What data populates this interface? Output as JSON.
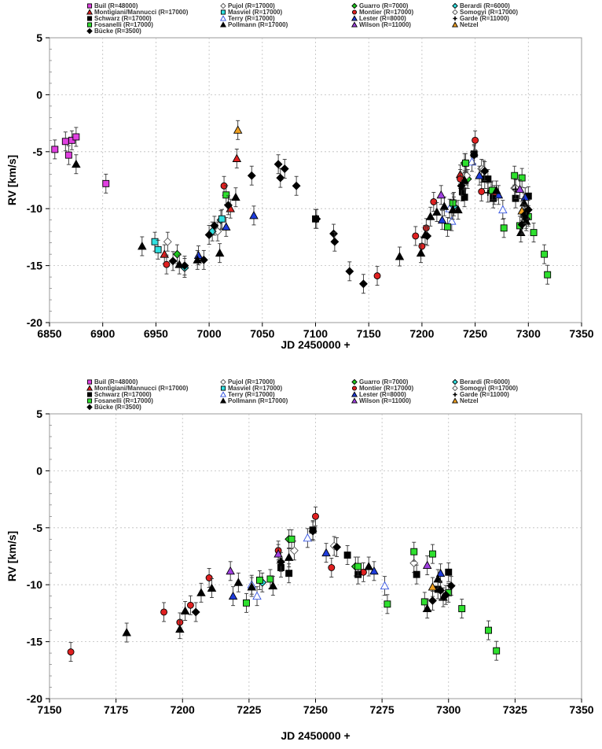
{
  "chart_data": [
    {
      "type": "scatter",
      "xlabel": "JD 2450000 +",
      "ylabel": "RV [km/s]",
      "xlim": [
        6850,
        7350
      ],
      "ylim": [
        -20,
        5
      ],
      "xticks": [
        "6850",
        "6900",
        "6950",
        "7000",
        "7050",
        "7100",
        "7150",
        "7200",
        "7250",
        "7300",
        "7350"
      ],
      "yticks": [
        "5",
        "0",
        "-5",
        "-10",
        "-15",
        "-20"
      ],
      "grid": true,
      "legend_position": "top",
      "legend": [
        "Buil (R=48000)",
        "Pujol (R=17000)",
        "Guarro (R=7000)",
        "Berardi (R=6000)",
        "Montigiani/Mannucci (R=17000)",
        "Masviel (R=17000)",
        "Montier (R=17000)",
        "Somogyi (R=17000)",
        "Schwarz (R=17000)",
        "Terry (R=17000)",
        "Lester (R=8000)",
        "Garde (R=11000)",
        "Fosanelli (R=17000)",
        "Pollmann (R=17000)",
        "Wilson (R=11000)",
        "Netzel",
        "Bücke (R=3500)"
      ],
      "series": [
        {
          "name": "Buil (R=48000)",
          "marker": "square",
          "color": "#e040e0",
          "points": [
            [
              6855,
              -4.8
            ],
            [
              6865,
              -4.1
            ],
            [
              6868,
              -5.3
            ],
            [
              6871,
              -4.0
            ],
            [
              6875,
              -3.7
            ],
            [
              6903,
              -7.8
            ]
          ]
        },
        {
          "name": "Pujol (R=17000)",
          "marker": "diamond-open",
          "color": "#ffffff",
          "points": [
            [
              6961,
              -12.9
            ],
            [
              7008,
              -12.0
            ],
            [
              7241,
              -7.0
            ],
            [
              7256,
              -6.5
            ],
            [
              7287,
              -8.2
            ]
          ]
        },
        {
          "name": "Guarro (R=7000)",
          "marker": "diamond",
          "color": "#1ec81e",
          "points": [
            [
              6970,
              -14.0
            ],
            [
              7240,
              -6.0
            ],
            [
              7243,
              -7.4
            ],
            [
              7265,
              -8.5
            ]
          ]
        },
        {
          "name": "Berardi (R=6000)",
          "marker": "diamond",
          "color": "#30e0e0",
          "points": [
            [
              6977,
              -15.2
            ],
            [
              7003,
              -12.0
            ],
            [
              7011,
              -11.0
            ],
            [
              7230,
              -9.8
            ]
          ]
        },
        {
          "name": "Montigiani/Mannucci (R=17000)",
          "marker": "triangle",
          "color": "#e02020",
          "points": [
            [
              6958,
              -14.0
            ],
            [
              7026,
              -5.6
            ],
            [
              7020,
              -10.0
            ],
            [
              7236,
              -7.0
            ]
          ]
        },
        {
          "name": "Masviel (R=17000)",
          "marker": "square",
          "color": "#30e0e0",
          "points": [
            [
              6949,
              -12.9
            ],
            [
              6952,
              -13.6
            ],
            [
              7012,
              -10.9
            ]
          ]
        },
        {
          "name": "Montier (R=17000)",
          "marker": "circle",
          "color": "#e02020",
          "points": [
            [
              6960,
              -14.9
            ],
            [
              7014,
              -8.0
            ],
            [
              7158,
              -15.9
            ],
            [
              7194,
              -12.4
            ],
            [
              7200,
              -13.3
            ],
            [
              7204,
              -11.7
            ],
            [
              7211,
              -9.4
            ],
            [
              7236,
              -7.4
            ],
            [
              7250,
              -4.0
            ],
            [
              7256,
              -8.5
            ],
            [
              7268,
              -8.8
            ]
          ]
        },
        {
          "name": "Somogyi (R=17000)",
          "marker": "diamond-open",
          "color": "#ffffff",
          "points": [
            [
              7242,
              -7.1
            ],
            [
              7258,
              -6.6
            ],
            [
              7288,
              -8.2
            ]
          ]
        },
        {
          "name": "Schwarz (R=17000)",
          "marker": "square",
          "color": "#000000",
          "points": [
            [
              7100,
              -10.9
            ],
            [
              7238,
              -8.5
            ],
            [
              7240,
              -9.0
            ],
            [
              7249,
              -5.2
            ],
            [
              7259,
              -7.4
            ],
            [
              7262,
              -7.4
            ],
            [
              7267,
              -9.1
            ],
            [
              7288,
              -9.1
            ],
            [
              7296,
              -10.5
            ],
            [
              7300,
              -8.9
            ]
          ]
        },
        {
          "name": "Terry (R=17000)",
          "marker": "triangle-open",
          "color": "#ffffff",
          "points": [
            [
              7226,
              -10.0
            ],
            [
              7228,
              -11.1
            ],
            [
              7247,
              -5.9
            ],
            [
              7276,
              -10.1
            ]
          ]
        },
        {
          "name": "Lester (R=8000)",
          "marker": "triangle",
          "color": "#1e3cdc",
          "points": [
            [
              6990,
              -14.1
            ],
            [
              7016,
              -11.6
            ],
            [
              7042,
              -10.6
            ],
            [
              7219,
              -11.0
            ],
            [
              7254,
              -7.1
            ],
            [
              7272,
              -8.8
            ],
            [
              7297,
              -9.0
            ]
          ]
        },
        {
          "name": "Garde (R=11000)",
          "marker": "plus",
          "color": "#000000",
          "points": [
            [
              7230,
              -9.4
            ],
            [
              7262,
              -8.6
            ],
            [
              7288,
              -8.3
            ]
          ]
        },
        {
          "name": "Fosanelli (R=17000)",
          "marker": "square",
          "color": "#2ee02e",
          "points": [
            [
              7016,
              -8.8
            ],
            [
              7224,
              -11.6
            ],
            [
              7229,
              -9.5
            ],
            [
              7241,
              -6.0
            ],
            [
              7266,
              -8.4
            ],
            [
              7277,
              -11.7
            ],
            [
              7287,
              -7.1
            ],
            [
              7292,
              -11.5
            ],
            [
              7294,
              -7.3
            ],
            [
              7300,
              -10.7
            ],
            [
              7305,
              -12.1
            ],
            [
              7315,
              -14.0
            ],
            [
              7318,
              -15.8
            ]
          ]
        },
        {
          "name": "Pollmann (R=17000)",
          "marker": "triangle",
          "color": "#000000",
          "points": [
            [
              6875,
              -6.1
            ],
            [
              6937,
              -13.3
            ],
            [
              6972,
              -14.9
            ],
            [
              6989,
              -14.5
            ],
            [
              7010,
              -13.9
            ],
            [
              7025,
              -9.0
            ],
            [
              7179,
              -14.2
            ],
            [
              7199,
              -13.9
            ],
            [
              7203,
              -12.3
            ],
            [
              7208,
              -10.7
            ],
            [
              7214,
              -10.3
            ],
            [
              7221,
              -9.8
            ],
            [
              7229,
              -10.1
            ],
            [
              7234,
              -10.1
            ],
            [
              7240,
              -7.5
            ],
            [
              7270,
              -8.4
            ],
            [
              7293,
              -12.1
            ],
            [
              7296,
              -9.5
            ],
            [
              7298,
              -11.1
            ]
          ]
        },
        {
          "name": "Wilson (R=11000)",
          "marker": "triangle",
          "color": "#a040e0",
          "points": [
            [
              7218,
              -8.8
            ],
            [
              7292,
              -8.3
            ]
          ]
        },
        {
          "name": "Netzel",
          "marker": "triangle",
          "color": "#f0a020",
          "points": [
            [
              7027,
              -3.1
            ],
            [
              7294,
              -10.2
            ]
          ]
        },
        {
          "name": "Bücke (R=3500)",
          "marker": "diamond",
          "color": "#000000",
          "points": [
            [
              6966,
              -14.6
            ],
            [
              6977,
              -15.0
            ],
            [
              6995,
              -14.5
            ],
            [
              7000,
              -12.3
            ],
            [
              7005,
              -11.5
            ],
            [
              7018,
              -9.7
            ],
            [
              7040,
              -7.1
            ],
            [
              7065,
              -6.1
            ],
            [
              7067,
              -7.3
            ],
            [
              7071,
              -6.5
            ],
            [
              7082,
              -8.0
            ],
            [
              7101,
              -10.9
            ],
            [
              7117,
              -12.2
            ],
            [
              7118,
              -12.9
            ],
            [
              7132,
              -15.5
            ],
            [
              7145,
              -16.6
            ],
            [
              7205,
              -12.4
            ],
            [
              7237,
              -8.0
            ],
            [
              7249,
              -5.3
            ],
            [
              7259,
              -6.7
            ],
            [
              7294,
              -11.4
            ],
            [
              7297,
              -10.5
            ],
            [
              7298,
              -10.9
            ],
            [
              7300,
              -10.1
            ]
          ]
        }
      ]
    },
    {
      "type": "scatter",
      "xlabel": "JD 2450000 +",
      "ylabel": "RV [km/s]",
      "xlim": [
        7150,
        7350
      ],
      "ylim": [
        -20,
        5
      ],
      "xticks": [
        "7150",
        "7175",
        "7200",
        "7225",
        "7250",
        "7275",
        "7300",
        "7325",
        "7350"
      ],
      "yticks": [
        "5",
        "0",
        "-5",
        "-10",
        "-15",
        "-20"
      ],
      "grid": true,
      "legend_position": "top",
      "legend": [
        "Buil (R=48000)",
        "Pujol (R=17000)",
        "Guarro (R=7000)",
        "Berardi (R=6000)",
        "Montigiani/Mannucci (R=17000)",
        "Masviel (R=17000)",
        "Montier (R=17000)",
        "Somogyi (R=17000)",
        "Schwarz (R=17000)",
        "Terry (R=17000)",
        "Lester (R=8000)",
        "Garde (R=11000)",
        "Fosanelli (R=17000)",
        "Pollmann (R=17000)",
        "Wilson (R=11000)",
        "Netzel",
        "Bücke (R=3500)"
      ],
      "series": [
        {
          "name": "Montier (R=17000)",
          "marker": "circle",
          "color": "#e02020",
          "points": [
            [
              7158,
              -15.9
            ],
            [
              7193,
              -12.4
            ],
            [
              7199,
              -13.3
            ],
            [
              7203,
              -11.8
            ],
            [
              7210,
              -9.4
            ],
            [
              7236,
              -7.0
            ],
            [
              7250,
              -4.0
            ],
            [
              7256,
              -8.5
            ],
            [
              7268,
              -8.9
            ]
          ]
        },
        {
          "name": "Pujol (R=17000)",
          "marker": "diamond-open",
          "color": "#ffffff",
          "points": [
            [
              7242,
              -7.0
            ],
            [
              7257,
              -6.6
            ],
            [
              7287,
              -8.1
            ]
          ]
        },
        {
          "name": "Guarro (R=7000)",
          "marker": "diamond",
          "color": "#1ec81e",
          "points": [
            [
              7240,
              -6.0
            ],
            [
              7265,
              -8.4
            ]
          ]
        },
        {
          "name": "Berardi (R=6000)",
          "marker": "diamond",
          "color": "#30e0e0",
          "points": [
            [
              7230,
              -9.8
            ]
          ]
        },
        {
          "name": "Schwarz (R=17000)",
          "marker": "square",
          "color": "#000000",
          "points": [
            [
              7237,
              -8.5
            ],
            [
              7240,
              -9.0
            ],
            [
              7249,
              -5.2
            ],
            [
              7262,
              -7.4
            ],
            [
              7266,
              -9.1
            ],
            [
              7288,
              -9.1
            ],
            [
              7296,
              -10.4
            ],
            [
              7300,
              -8.9
            ]
          ]
        },
        {
          "name": "Terry (R=17000)",
          "marker": "triangle-open",
          "color": "#ffffff",
          "points": [
            [
              7226,
              -10.0
            ],
            [
              7228,
              -11.0
            ],
            [
              7247,
              -5.9
            ],
            [
              7276,
              -10.1
            ]
          ]
        },
        {
          "name": "Lester (R=8000)",
          "marker": "triangle",
          "color": "#1e3cdc",
          "points": [
            [
              7219,
              -11.0
            ],
            [
              7254,
              -7.2
            ],
            [
              7272,
              -8.8
            ],
            [
              7297,
              -9.0
            ]
          ]
        },
        {
          "name": "Fosanelli (R=17000)",
          "marker": "square",
          "color": "#2ee02e",
          "points": [
            [
              7224,
              -11.6
            ],
            [
              7229,
              -9.6
            ],
            [
              7233,
              -9.5
            ],
            [
              7241,
              -6.0
            ],
            [
              7266,
              -8.4
            ],
            [
              7277,
              -11.7
            ],
            [
              7287,
              -7.1
            ],
            [
              7291,
              -11.5
            ],
            [
              7294,
              -7.3
            ],
            [
              7300,
              -10.7
            ],
            [
              7305,
              -12.1
            ],
            [
              7315,
              -14.0
            ],
            [
              7318,
              -15.8
            ]
          ]
        },
        {
          "name": "Pollmann (R=17000)",
          "marker": "triangle",
          "color": "#000000",
          "points": [
            [
              7179,
              -14.2
            ],
            [
              7199,
              -13.9
            ],
            [
              7201,
              -12.3
            ],
            [
              7207,
              -10.7
            ],
            [
              7211,
              -10.3
            ],
            [
              7221,
              -9.8
            ],
            [
              7226,
              -10.2
            ],
            [
              7234,
              -10.1
            ],
            [
              7240,
              -7.6
            ],
            [
              7270,
              -8.4
            ],
            [
              7292,
              -12.1
            ],
            [
              7296,
              -9.5
            ],
            [
              7298,
              -11.1
            ]
          ]
        },
        {
          "name": "Wilson (R=11000)",
          "marker": "triangle",
          "color": "#a040e0",
          "points": [
            [
              7218,
              -8.8
            ],
            [
              7236,
              -7.3
            ],
            [
              7292,
              -8.3
            ]
          ]
        },
        {
          "name": "Netzel",
          "marker": "triangle",
          "color": "#f0a020",
          "points": [
            [
              7294,
              -10.2
            ]
          ]
        },
        {
          "name": "Bücke (R=3500)",
          "marker": "diamond",
          "color": "#000000",
          "points": [
            [
              7205,
              -12.4
            ],
            [
              7237,
              -8.0
            ],
            [
              7249,
              -5.3
            ],
            [
              7258,
              -6.7
            ],
            [
              7294,
              -11.4
            ],
            [
              7297,
              -10.5
            ],
            [
              7299,
              -10.9
            ],
            [
              7301,
              -10.1
            ]
          ]
        }
      ]
    }
  ]
}
